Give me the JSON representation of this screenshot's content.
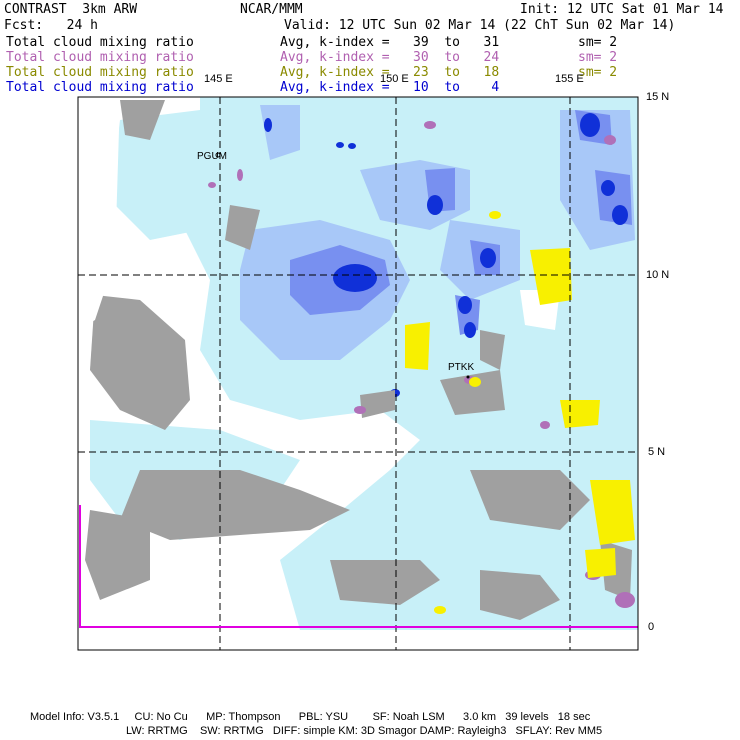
{
  "header": {
    "model": "CONTRAST  3km ARW",
    "center": "NCAR/MMM",
    "init": "Init: 12 UTC Sat 01 Mar 14",
    "fcst": "Fcst:   24 h",
    "valid": "Valid: 12 UTC Sun 02 Mar 14 (22 ChT Sun 02 Mar 14)"
  },
  "fields": [
    {
      "name": "Total cloud mixing ratio",
      "avg": "Avg, k-index =   39  to   31",
      "sm": "sm= 2",
      "color": "#000000"
    },
    {
      "name": "Total cloud mixing ratio",
      "avg": "Avg, k-index =   30  to   24",
      "sm": "sm= 2",
      "color": "#b060b0"
    },
    {
      "name": "Total cloud mixing ratio",
      "avg": "Avg, k-index =   23  to   18",
      "sm": "sm= 2",
      "color": "#8a8a00"
    },
    {
      "name": "Total cloud mixing ratio",
      "avg": "Avg, k-index =   10  to    4",
      "sm": "",
      "color": "#0000d0"
    }
  ],
  "grid": {
    "lon_labels": [
      "145 E",
      "150 E",
      "155 E"
    ],
    "lat_labels": [
      "15 N",
      "10 N",
      "5 N",
      "0"
    ]
  },
  "stations": [
    "PGUM",
    "PTKK"
  ],
  "footer": {
    "line1": "Model Info: V3.5.1     CU: No Cu      MP: Thompson      PBL: YSU        SF: Noah LSM      3.0 km   39 levels   18 sec",
    "line2": "LW: RRTMG    SW: RRTMG   DIFF: simple KM: 3D Smagor DAMP: Rayleigh3   SFLAY: Rev MM5"
  },
  "colors": {
    "level4": "#c8f0f8",
    "level3": "#a8c8f8",
    "level2": "#7890f0",
    "level1": "#2040e0",
    "core": "#0010c0",
    "low": "#a0a0a0",
    "mid": "#b070b8",
    "yellow": "#f8f000",
    "grid": "#000000",
    "line": "#e000e0"
  }
}
